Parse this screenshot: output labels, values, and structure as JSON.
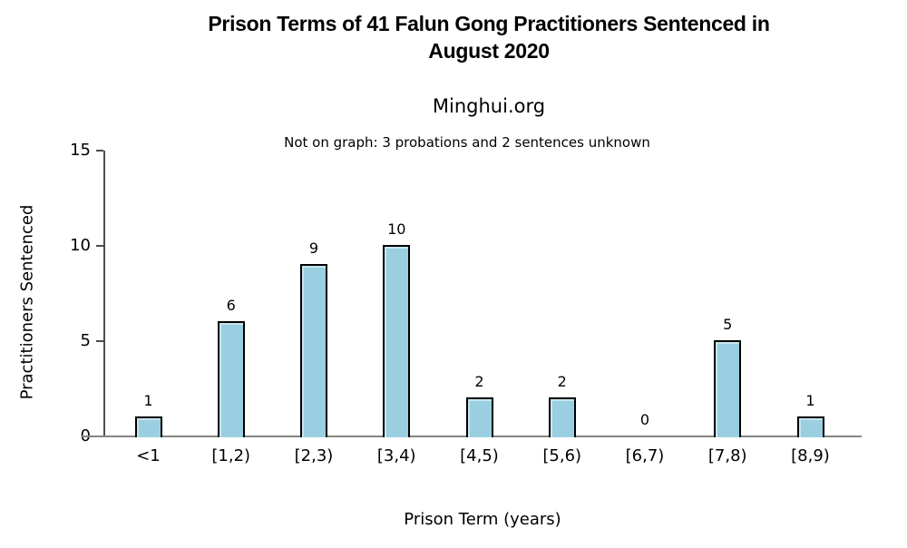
{
  "header": {
    "title": "Prison Terms of 41 Falun Gong Practitioners Sentenced in\nAugust 2020",
    "subtitle": "Minghui.org",
    "annotation": "Not on graph: 3 probations and 2 sentences unknown"
  },
  "chart_data": {
    "type": "bar",
    "title": "Prison Terms of 41 Falun Gong Practitioners Sentenced in August 2020",
    "subtitle": "Minghui.org",
    "annotation": "Not on graph: 3 probations and 2 sentences unknown",
    "categories": [
      "<1",
      "[1,2)",
      "[2,3)",
      "[3,4)",
      "[4,5)",
      "[5,6)",
      "[6,7)",
      "[7,8)",
      "[8,9)"
    ],
    "values": [
      1,
      6,
      9,
      10,
      2,
      2,
      0,
      5,
      1
    ],
    "xlabel": "Prison Term (years)",
    "ylabel": "Practitioners Sentenced",
    "yticks": [
      0,
      5,
      10,
      15
    ],
    "ylim": [
      0,
      15
    ],
    "grid": false,
    "legend": "none",
    "bar_fill_color": "#99CFE0",
    "bar_border_color": "#000000",
    "x_axis_line_color": "#848484",
    "y_axis_line_color": "#4D4D4D",
    "text_color": "#000000"
  }
}
